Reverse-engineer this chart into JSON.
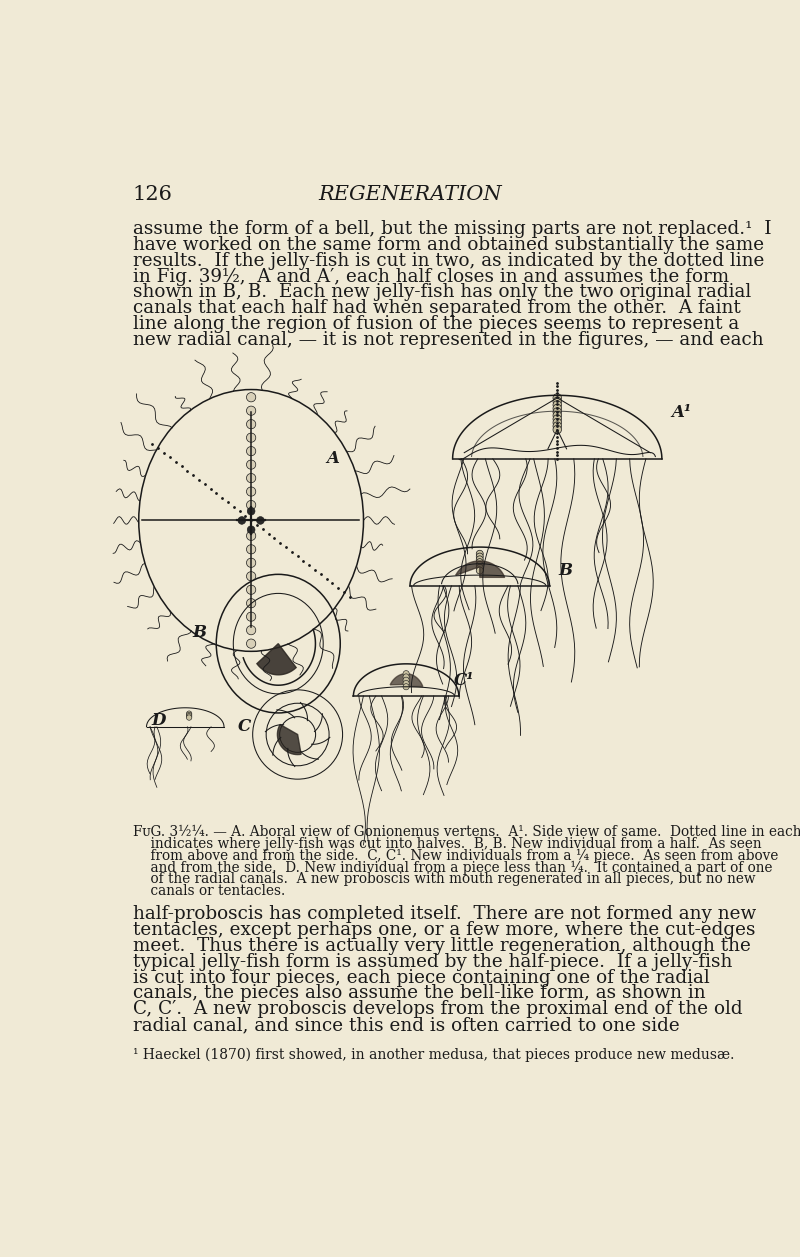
{
  "bg_color": "#f0ead6",
  "page_number": "126",
  "header_title": "REGENERATION",
  "text_color": "#1a1a1a",
  "ink_color": "#1a1a1a",
  "font_size_body": 13.2,
  "font_size_caption": 9.8,
  "font_size_header": 15,
  "font_size_label": 12,
  "body1_lines": [
    "assume the form of a bell, but the missing parts are not replaced.¹  I",
    "have worked on the same form and obtained substantially the same",
    "results.  If the jelly-fish is cut in two, as indicated by the dotted line",
    "in Fig. 39½,  A and A′, each half closes in and assumes the form",
    "shown in B, B.  Each new jelly-fish has only the two original radial",
    "canals that each half had when separated from the other.  A faint",
    "line along the region of fusion of the pieces seems to represent a",
    "new radial canal, — it is not represented in the figures, — and each"
  ],
  "body2_lines": [
    "half-proboscis has completed itself.  There are not formed any new",
    "tentacles, except perhaps one, or a few more, where the cut-edges",
    "meet.  Thus there is actually very little regeneration, although the",
    "typical jelly-fish form is assumed by the half-piece.  If a jelly-fish",
    "is cut into four pieces, each piece containing one of the radial",
    "canals, the pieces also assume the bell-like form, as shown in",
    "C, C′.  A new proboscis develops from the proximal end of the old",
    "radial canal, and since this end is often carried to one side"
  ],
  "caption_lines": [
    "FᴜG. 3½¼. — A. Aboral view of Gonionemus vertens.  A¹. Side view of same.  Dotted line in each",
    "    indicates where jelly-fish was cut into halves.  B, B. New individual from a half.  As seen",
    "    from above and from the side.  C, C¹. New individuals from a ¼ piece.  As seen from above",
    "    and from the side.  D. New individual from a piece less than ¼.  It contained a part of one",
    "    of the radial canals.  A new proboscis with mouth regenerated in all pieces, but no new",
    "    canals or tentacles."
  ],
  "footnote": "¹ Haeckel (1870) first showed, in another medusa, that pieces produce new medusæ."
}
